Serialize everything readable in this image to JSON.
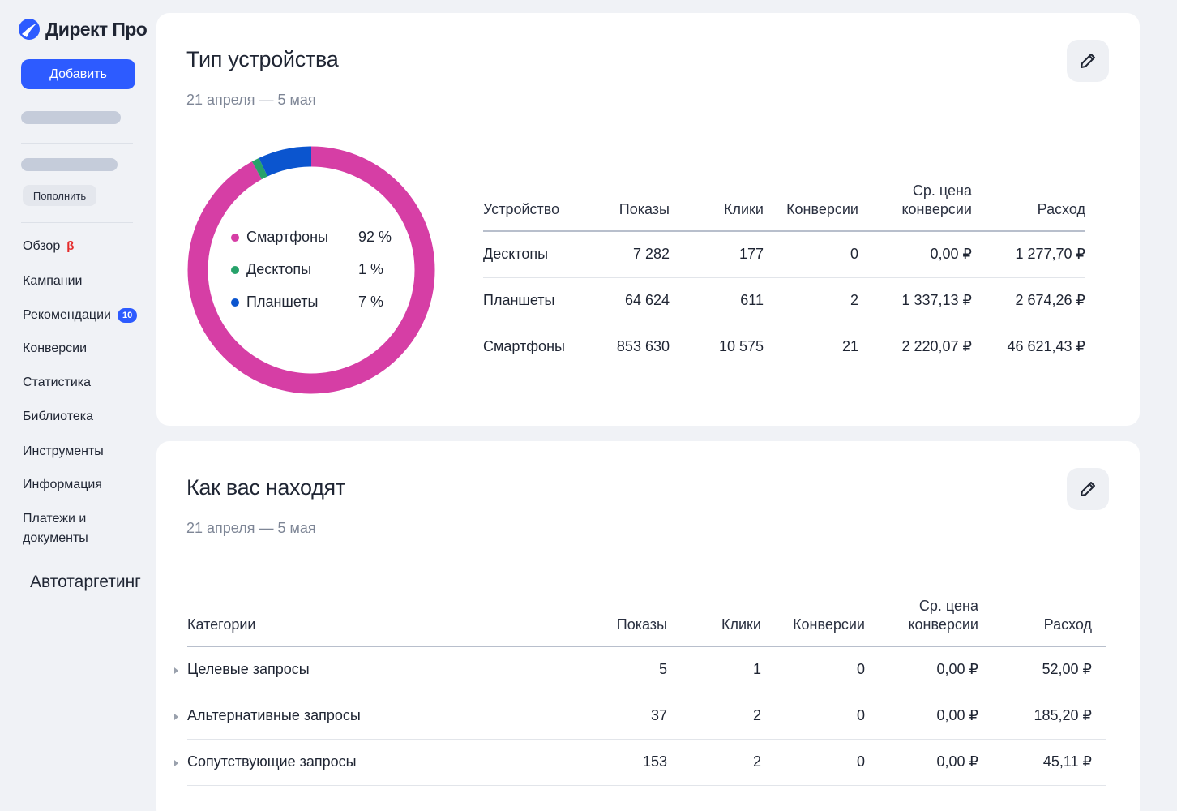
{
  "sidebar": {
    "logo_text": "Директ Про",
    "add_button": "Добавить",
    "topup_button": "Пополнить",
    "beta_mark": "β",
    "recommendations_count": "10",
    "nav": [
      {
        "label": "Обзор"
      },
      {
        "label": "Кампании"
      },
      {
        "label": "Рекомендации"
      },
      {
        "label": "Конверсии"
      },
      {
        "label": "Статистика"
      },
      {
        "label": "Библиотека"
      },
      {
        "label": "Инструменты"
      },
      {
        "label": "Информация"
      },
      {
        "label": "Платежи и документы"
      }
    ]
  },
  "devices_card": {
    "title": "Тип устройства",
    "date_range": "21 апреля — 5 мая",
    "chart_data": {
      "type": "pie",
      "categories": [
        "Смартфоны",
        "Десктопы",
        "Планшеты"
      ],
      "values": [
        92,
        1,
        7
      ],
      "labels": [
        "92 %",
        "1 %",
        "7 %"
      ],
      "colors": [
        "#d63ea5",
        "#26a26a",
        "#0b55cf"
      ]
    },
    "table": {
      "headers": [
        "Устройство",
        "Показы",
        "Клики",
        "Конверсии",
        "Ср. цена конверсии",
        "Расход"
      ],
      "rows": [
        [
          "Десктопы",
          "7 282",
          "177",
          "0",
          "0,00 ₽",
          "1 277,70 ₽"
        ],
        [
          "Планшеты",
          "64 624",
          "611",
          "2",
          "1 337,13 ₽",
          "2 674,26 ₽"
        ],
        [
          "Смартфоны",
          "853 630",
          "10 575",
          "21",
          "2 220,07 ₽",
          "46 621,43 ₽"
        ]
      ]
    }
  },
  "finding_card": {
    "title": "Как вас находят",
    "date_range": "21 апреля — 5 мая",
    "subtitle": "Автотаргетинг",
    "table": {
      "headers": [
        "Категории",
        "Показы",
        "Клики",
        "Конверсии",
        "Ср. цена конверсии",
        "Расход"
      ],
      "rows": [
        [
          "Целевые запросы",
          "5",
          "1",
          "0",
          "0,00 ₽",
          "52,00 ₽"
        ],
        [
          "Альтернативные запросы",
          "37",
          "2",
          "0",
          "0,00 ₽",
          "185,20 ₽"
        ],
        [
          "Сопутствующие запросы",
          "153",
          "2",
          "0",
          "0,00 ₽",
          "45,11 ₽"
        ]
      ]
    }
  }
}
